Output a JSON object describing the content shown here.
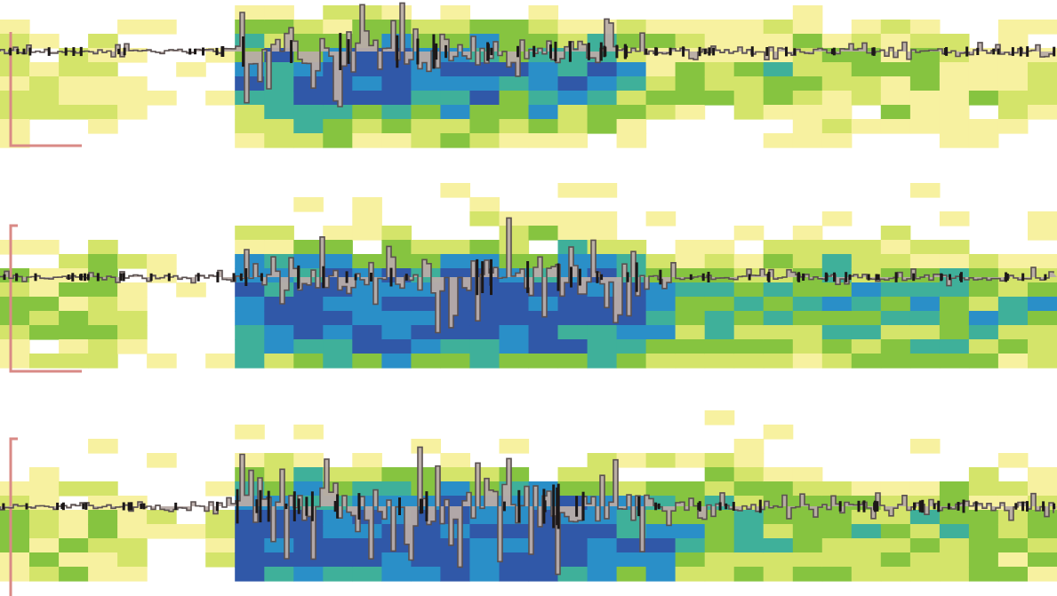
{
  "chart_data": [
    {
      "type": "heatmap",
      "overlay": "line",
      "colors": {
        "low": "#f7f1a0",
        "lowmid": "#d4e46a",
        "mid": "#86c440",
        "midhigh": "#3fb09a",
        "high": "#2a8fc8",
        "peak": "#3058a8"
      },
      "line_color": "#5a5050",
      "fill_color": "#b8aca8",
      "grid": false,
      "signal_amplitude": [
        0.08,
        0.08,
        0.08,
        0.08,
        0.08,
        0.08,
        0.08,
        0.1,
        0.55,
        0.65,
        0.6,
        0.7,
        0.7,
        0.65,
        0.6,
        0.55,
        0.5,
        0.45,
        0.4,
        0.45,
        0.4,
        0.2,
        0.1,
        0.12,
        0.1,
        0.1,
        0.1,
        0.1,
        0.1,
        0.1,
        0.1,
        0.1,
        0.1,
        0.1,
        0.1,
        0.1
      ],
      "intensity_profile": [
        0.35,
        0.3,
        0.3,
        0.3,
        0.25,
        0.15,
        0.1,
        0.15,
        0.75,
        0.8,
        0.85,
        0.9,
        0.9,
        0.95,
        0.9,
        0.9,
        0.85,
        0.8,
        0.8,
        0.75,
        0.7,
        0.6,
        0.45,
        0.45,
        0.4,
        0.4,
        0.45,
        0.4,
        0.45,
        0.4,
        0.45,
        0.4,
        0.4,
        0.4,
        0.4,
        0.4
      ]
    },
    {
      "type": "heatmap",
      "overlay": "line",
      "colors": {
        "low": "#f7f1a0",
        "lowmid": "#d4e46a",
        "mid": "#86c440",
        "midhigh": "#3fb09a",
        "high": "#2a8fc8",
        "peak": "#3058a8"
      },
      "line_color": "#5a5050",
      "fill_color": "#b8aca8",
      "grid": false,
      "signal_amplitude": [
        0.06,
        0.06,
        0.06,
        0.06,
        0.06,
        0.06,
        0.06,
        0.1,
        0.45,
        0.5,
        0.5,
        0.5,
        0.55,
        0.6,
        0.75,
        0.7,
        0.6,
        0.8,
        0.65,
        0.65,
        0.6,
        0.55,
        0.2,
        0.1,
        0.1,
        0.1,
        0.1,
        0.1,
        0.1,
        0.1,
        0.1,
        0.1,
        0.1,
        0.1,
        0.1,
        0.1
      ],
      "intensity_profile": [
        0.4,
        0.4,
        0.45,
        0.45,
        0.3,
        0.15,
        0.1,
        0.2,
        0.85,
        0.9,
        0.9,
        0.9,
        0.95,
        0.95,
        0.95,
        0.95,
        0.95,
        0.95,
        0.95,
        0.95,
        0.95,
        0.9,
        0.7,
        0.55,
        0.6,
        0.6,
        0.6,
        0.6,
        0.65,
        0.65,
        0.6,
        0.6,
        0.6,
        0.6,
        0.6,
        0.6
      ]
    },
    {
      "type": "heatmap",
      "overlay": "line",
      "colors": {
        "low": "#f7f1a0",
        "lowmid": "#d4e46a",
        "mid": "#86c440",
        "midhigh": "#3fb09a",
        "high": "#2a8fc8",
        "peak": "#3058a8"
      },
      "line_color": "#5a5050",
      "fill_color": "#b8aca8",
      "grid": false,
      "signal_amplitude": [
        0.06,
        0.06,
        0.06,
        0.06,
        0.06,
        0.06,
        0.06,
        0.1,
        0.55,
        0.55,
        0.6,
        0.65,
        0.6,
        0.6,
        0.85,
        0.7,
        0.65,
        0.75,
        0.75,
        0.7,
        0.65,
        0.6,
        0.25,
        0.15,
        0.15,
        0.15,
        0.15,
        0.15,
        0.15,
        0.15,
        0.15,
        0.15,
        0.15,
        0.15,
        0.15,
        0.15
      ],
      "intensity_profile": [
        0.4,
        0.4,
        0.4,
        0.4,
        0.3,
        0.2,
        0.15,
        0.2,
        0.85,
        0.9,
        0.95,
        0.95,
        0.95,
        0.95,
        0.95,
        0.95,
        0.95,
        0.95,
        0.95,
        0.95,
        0.9,
        0.8,
        0.7,
        0.6,
        0.6,
        0.6,
        0.55,
        0.55,
        0.5,
        0.5,
        0.5,
        0.5,
        0.5,
        0.5,
        0.5,
        0.5
      ]
    }
  ]
}
